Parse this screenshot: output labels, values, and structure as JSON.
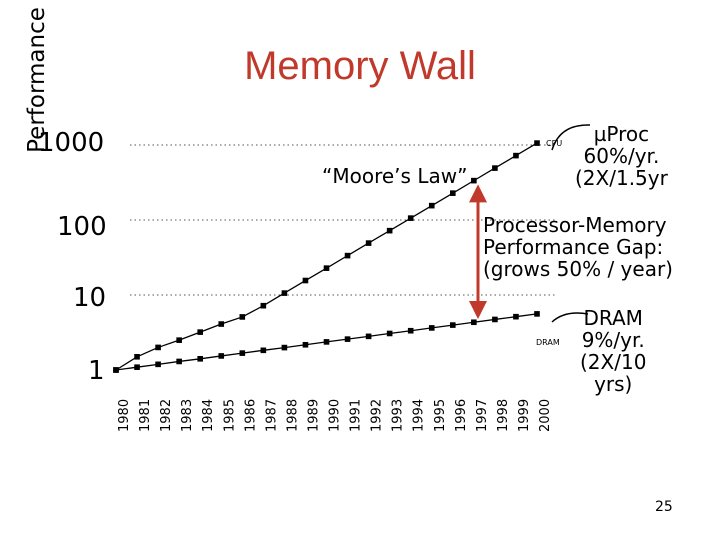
{
  "slide": {
    "title": "Memory Wall",
    "page_number": "25"
  },
  "chart_data": {
    "type": "line",
    "title": "Memory Wall",
    "xlabel": "",
    "ylabel": "Performance",
    "yscale": "log",
    "ylim": [
      1,
      1000
    ],
    "y_ticks": [
      "1000",
      "100",
      "10",
      "1"
    ],
    "grid": "dotted horizontal at 10, 100, 1000",
    "x": [
      "1980",
      "1981",
      "1982",
      "1983",
      "1984",
      "1985",
      "1986",
      "1987",
      "1988",
      "1989",
      "1990",
      "1991",
      "1992",
      "1993",
      "1994",
      "1995",
      "1996",
      "1997",
      "1998",
      "1999",
      "2000"
    ],
    "series": [
      {
        "name": "CPU",
        "color": "#000000",
        "values": [
          1.0,
          1.5,
          2.0,
          2.5,
          3.2,
          4.1,
          5.1,
          7.2,
          10.6,
          15.6,
          22.8,
          33.5,
          49.2,
          72.1,
          105.9,
          155.4,
          228,
          335,
          492,
          722,
          1060
        ]
      },
      {
        "name": "DRAM",
        "color": "#000000",
        "values": [
          1.0,
          1.09,
          1.19,
          1.3,
          1.41,
          1.54,
          1.68,
          1.83,
          1.99,
          2.17,
          2.37,
          2.58,
          2.81,
          3.07,
          3.34,
          3.64,
          3.97,
          4.33,
          4.72,
          5.14,
          5.6
        ]
      }
    ],
    "annotations": {
      "moores_law": "“Moore’s Law”",
      "uproc": [
        "µProc",
        "60%/yr.",
        "(2X/1.5yr"
      ],
      "gap": [
        "Processor-Memory",
        "Performance Gap:",
        "(grows 50% / year)"
      ],
      "dram": [
        "DRAM",
        "9%/yr.",
        "(2X/10",
        "yrs)"
      ]
    },
    "gap_arrow": {
      "year": "1998",
      "from": 4.72,
      "to": 492,
      "color": "#c0392b"
    }
  }
}
